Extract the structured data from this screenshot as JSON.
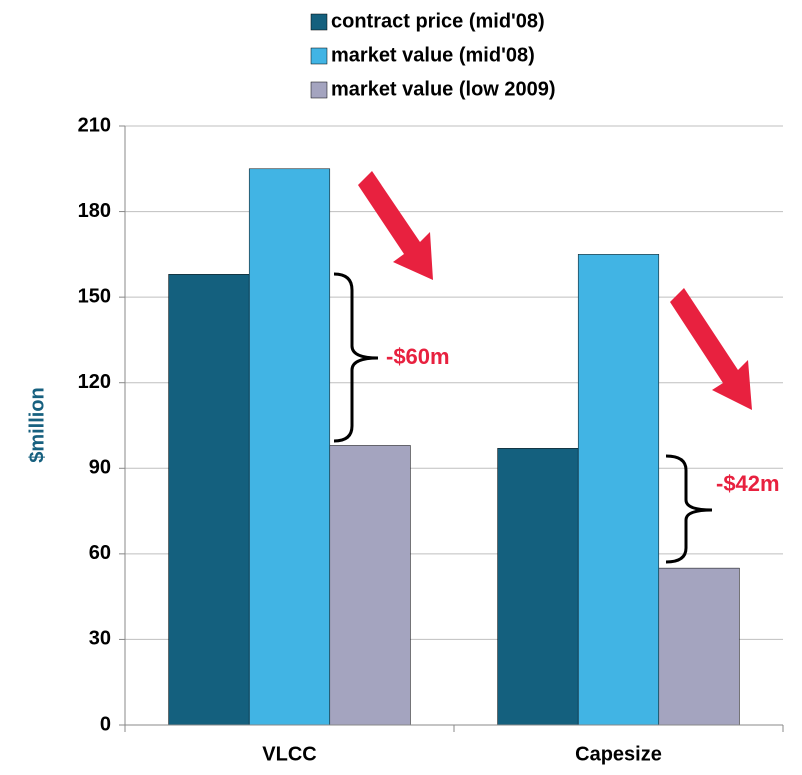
{
  "chart_data": {
    "type": "bar",
    "categories": [
      "VLCC",
      "Capesize"
    ],
    "series": [
      {
        "name": "contract price (mid'08)",
        "color": "#14607e",
        "values": [
          158,
          97
        ]
      },
      {
        "name": "market value (mid'08)",
        "color": "#41b4e4",
        "values": [
          195,
          165
        ]
      },
      {
        "name": "market value (low 2009)",
        "color": "#a4a4bf",
        "values": [
          98,
          55
        ]
      }
    ],
    "y_label": "$million",
    "ylim": [
      0,
      210
    ],
    "yticks": [
      0,
      30,
      60,
      90,
      120,
      150,
      180,
      210
    ],
    "grid": true,
    "legend": "top",
    "annotations": [
      "-$60m",
      "-$42m"
    ]
  }
}
